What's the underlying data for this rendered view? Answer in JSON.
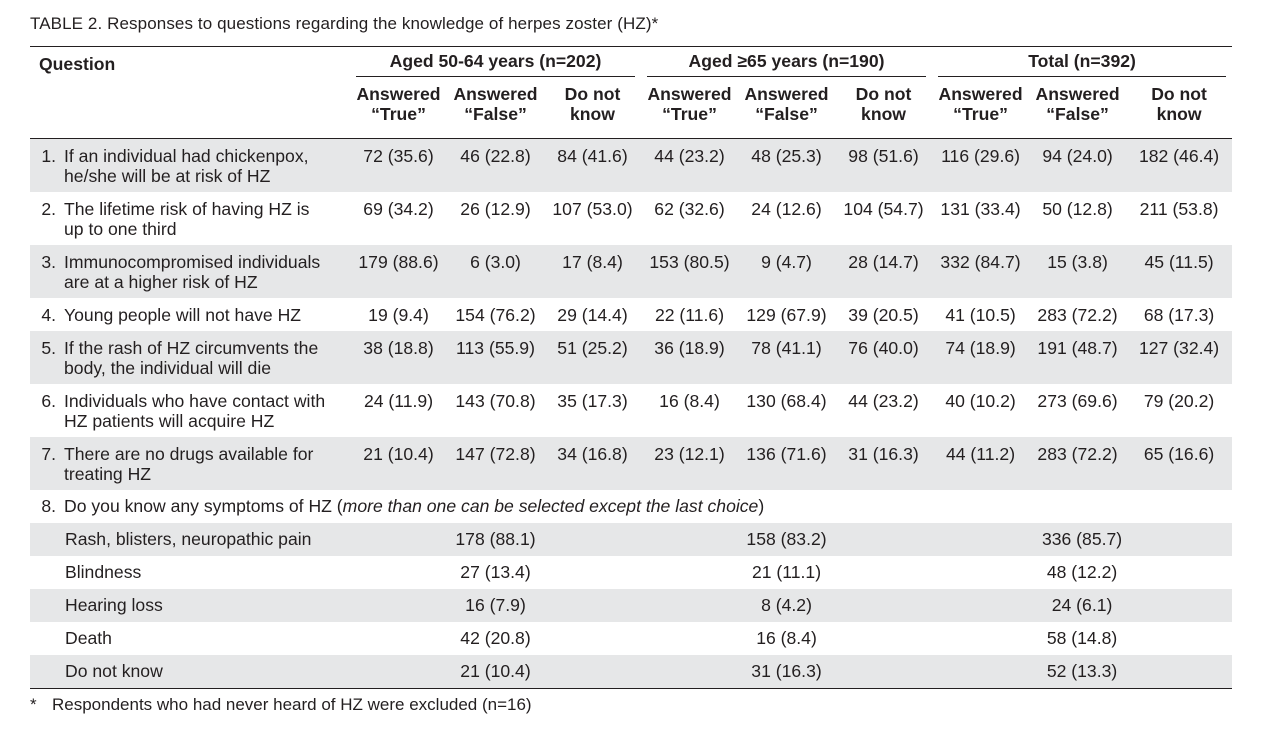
{
  "caption": {
    "label": "TABLE 2.",
    "text": "Responses to questions regarding the knowledge of herpes zoster (HZ)*"
  },
  "header": {
    "question": "Question",
    "groups": [
      "Aged 50-64 years (n=202)",
      "Aged ≥65 years (n=190)",
      "Total (n=392)"
    ],
    "subcols": [
      [
        "Answered",
        "“True”"
      ],
      [
        "Answered",
        "“False”"
      ],
      [
        "Do not",
        "know"
      ]
    ]
  },
  "rows": [
    {
      "num": "1.",
      "line1": "If an individual had chickenpox,",
      "line2": "he/she will be at risk of HZ",
      "values": [
        "72 (35.6)",
        "46 (22.8)",
        "84 (41.6)",
        "44 (23.2)",
        "48 (25.3)",
        "98 (51.6)",
        "116 (29.6)",
        "94 (24.0)",
        "182 (46.4)"
      ]
    },
    {
      "num": "2.",
      "line1": "The lifetime risk of having HZ is",
      "line2": "up to one third",
      "values": [
        "69 (34.2)",
        "26 (12.9)",
        "107 (53.0)",
        "62 (32.6)",
        "24 (12.6)",
        "104 (54.7)",
        "131 (33.4)",
        "50 (12.8)",
        "211 (53.8)"
      ]
    },
    {
      "num": "3.",
      "line1": "Immunocompromised individuals",
      "line2": "are at a higher risk of HZ",
      "values": [
        "179 (88.6)",
        "6 (3.0)",
        "17 (8.4)",
        "153 (80.5)",
        "9 (4.7)",
        "28 (14.7)",
        "332 (84.7)",
        "15 (3.8)",
        "45 (11.5)"
      ]
    },
    {
      "num": "4.",
      "line1": "Young people will not have HZ",
      "line2": "",
      "values": [
        "19 (9.4)",
        "154 (76.2)",
        "29 (14.4)",
        "22 (11.6)",
        "129 (67.9)",
        "39 (20.5)",
        "41 (10.5)",
        "283 (72.2)",
        "68 (17.3)"
      ]
    },
    {
      "num": "5.",
      "line1": "If the rash of HZ circumvents the",
      "line2": "body, the individual will die",
      "values": [
        "38 (18.8)",
        "113 (55.9)",
        "51 (25.2)",
        "36 (18.9)",
        "78 (41.1)",
        "76 (40.0)",
        "74 (18.9)",
        "191 (48.7)",
        "127 (32.4)"
      ]
    },
    {
      "num": "6.",
      "line1": "Individuals who have contact with",
      "line2": "HZ patients will acquire HZ",
      "values": [
        "24 (11.9)",
        "143 (70.8)",
        "35 (17.3)",
        "16 (8.4)",
        "130 (68.4)",
        "44 (23.2)",
        "40 (10.2)",
        "273 (69.6)",
        "79 (20.2)"
      ]
    },
    {
      "num": "7.",
      "line1": "There are no drugs available for",
      "line2": "treating HZ",
      "values": [
        "21 (10.4)",
        "147 (72.8)",
        "34 (16.8)",
        "23 (12.1)",
        "136 (71.6)",
        "31 (16.3)",
        "44 (11.2)",
        "283 (72.2)",
        "65 (16.6)"
      ]
    }
  ],
  "q8": {
    "num": "8.",
    "text": "Do you know any symptoms of HZ (",
    "italic": "more than one can be selected except the last choice",
    "close": ")",
    "items": [
      {
        "label": "Rash, blisters, neuropathic pain",
        "values": [
          "178 (88.1)",
          "158 (83.2)",
          "336 (85.7)"
        ]
      },
      {
        "label": "Blindness",
        "values": [
          "27 (13.4)",
          "21 (11.1)",
          "48 (12.2)"
        ]
      },
      {
        "label": "Hearing loss",
        "values": [
          "16 (7.9)",
          "8 (4.2)",
          "24 (6.1)"
        ]
      },
      {
        "label": "Death",
        "values": [
          "42 (20.8)",
          "16 (8.4)",
          "58 (14.8)"
        ]
      },
      {
        "label": "Do not know",
        "values": [
          "21 (10.4)",
          "31 (16.3)",
          "52 (13.3)"
        ]
      }
    ]
  },
  "footnote": {
    "star": "*",
    "text": "Respondents who had never heard of HZ were excluded (n=16)"
  }
}
